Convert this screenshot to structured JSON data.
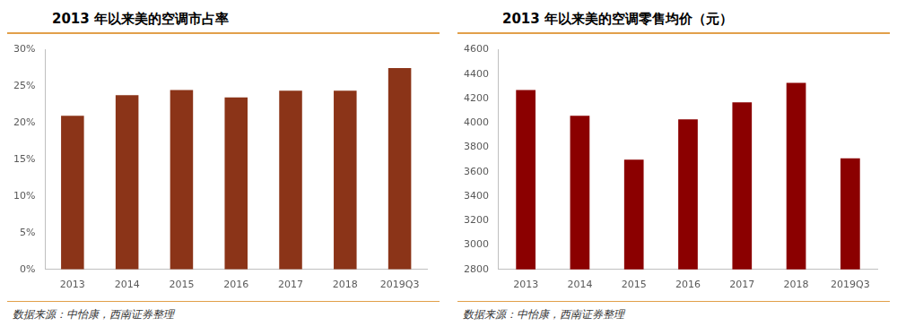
{
  "chart_data": [
    {
      "type": "bar",
      "title": "2013 年以来美的空调市占率",
      "categories": [
        "2013",
        "2014",
        "2015",
        "2016",
        "2017",
        "2018",
        "2019Q3"
      ],
      "values": [
        21,
        23.8,
        24.5,
        23.5,
        24.4,
        24.4,
        27.5
      ],
      "color": "#8b3418",
      "ylim": [
        0,
        30
      ],
      "yticks": [
        {
          "value": 0,
          "label": "0%"
        },
        {
          "value": 5,
          "label": "5%"
        },
        {
          "value": 10,
          "label": "10%"
        },
        {
          "value": 15,
          "label": "15%"
        },
        {
          "value": 20,
          "label": "20%"
        },
        {
          "value": 25,
          "label": "25%"
        },
        {
          "value": 30,
          "label": "30%"
        }
      ],
      "grid": false,
      "source": "数据来源：中怡康，西南证券整理"
    },
    {
      "type": "bar",
      "title": "2013 年以来美的空调零售均价（元）",
      "categories": [
        "2013",
        "2014",
        "2015",
        "2016",
        "2017",
        "2018",
        "2019Q3"
      ],
      "values": [
        4270,
        4060,
        3700,
        4030,
        4170,
        4330,
        3710
      ],
      "color": "#8b0000",
      "ylim": [
        2800,
        4600
      ],
      "yticks": [
        2800,
        3000,
        3200,
        3400,
        3600,
        3800,
        4000,
        4200,
        4400,
        4600
      ],
      "grid": false,
      "source": "数据来源：中怡康，西南证券整理"
    }
  ]
}
